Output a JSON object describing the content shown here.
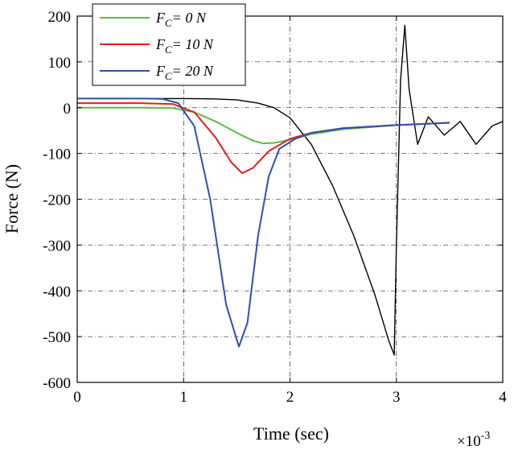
{
  "chart_data": {
    "type": "line",
    "title": "",
    "xlabel": "Time (sec)",
    "ylabel": "Force (N)",
    "x_multiplier_label": "×10",
    "x_multiplier_exp": "-3",
    "xlim": [
      0,
      4
    ],
    "ylim": [
      -600,
      200
    ],
    "xticks": [
      0,
      1,
      2,
      3,
      4
    ],
    "yticks": [
      -600,
      -500,
      -400,
      -300,
      -200,
      -100,
      0,
      100,
      200
    ],
    "xtick_labels": [
      "0",
      "1",
      "2",
      "3",
      "4"
    ],
    "ytick_labels": [
      "-600",
      "-500",
      "-400",
      "-300",
      "-200",
      "-100",
      "0",
      "100",
      "200"
    ],
    "grid": true,
    "legend_position": "top-left",
    "series": [
      {
        "name": "F_C = 0 N",
        "legend_main": "F",
        "legend_sub": "C",
        "legend_rest": "= 0 N",
        "color": "#5dbb3f",
        "x": [
          0,
          0.6,
          0.9,
          1.1,
          1.3,
          1.5,
          1.65,
          1.75,
          1.85,
          2.0,
          2.2,
          2.5,
          3.0,
          3.5
        ],
        "y": [
          0,
          0,
          -1,
          -10,
          -30,
          -55,
          -72,
          -78,
          -77,
          -70,
          -58,
          -47,
          -38,
          -33
        ]
      },
      {
        "name": "F_C = 10 N",
        "legend_main": "F",
        "legend_sub": "C",
        "legend_rest": "= 10 N",
        "color": "#e02020",
        "x": [
          0,
          0.6,
          0.9,
          1.1,
          1.3,
          1.45,
          1.55,
          1.65,
          1.8,
          2.0,
          2.2,
          2.5,
          3.0,
          3.5
        ],
        "y": [
          10,
          10,
          8,
          -10,
          -65,
          -120,
          -143,
          -132,
          -95,
          -68,
          -55,
          -45,
          -38,
          -33
        ]
      },
      {
        "name": "F_C = 20 N",
        "legend_main": "F",
        "legend_sub": "C",
        "legend_rest": "= 20 N",
        "color": "#3050b0",
        "x": [
          0,
          0.6,
          0.8,
          0.95,
          1.1,
          1.25,
          1.4,
          1.52,
          1.6,
          1.7,
          1.8,
          1.9,
          2.05,
          2.2,
          2.5,
          3.0,
          3.5
        ],
        "y": [
          20,
          20,
          19,
          10,
          -40,
          -200,
          -430,
          -522,
          -470,
          -280,
          -150,
          -90,
          -68,
          -55,
          -45,
          -38,
          -33
        ]
      },
      {
        "name": "",
        "color": "#000000",
        "x": [
          0,
          0.5,
          1.0,
          1.3,
          1.5,
          1.7,
          1.85,
          2.0,
          2.2,
          2.4,
          2.6,
          2.8,
          2.93,
          2.98,
          3.0,
          3.04,
          3.08,
          3.12,
          3.2,
          3.3,
          3.45,
          3.6,
          3.75,
          3.9,
          4.0
        ],
        "y": [
          20,
          20,
          20,
          19,
          17,
          10,
          0,
          -22,
          -80,
          -170,
          -280,
          -410,
          -510,
          -540,
          -300,
          60,
          180,
          40,
          -80,
          -20,
          -60,
          -30,
          -80,
          -40,
          -30
        ]
      }
    ]
  }
}
